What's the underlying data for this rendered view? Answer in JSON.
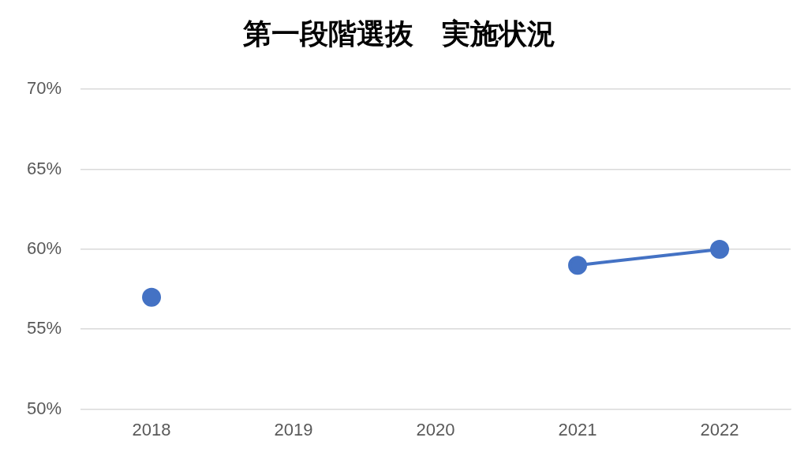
{
  "chart_data": {
    "type": "line",
    "title": "第一段階選抜　実施状況",
    "categories": [
      "2018",
      "2019",
      "2020",
      "2021",
      "2022"
    ],
    "series": [
      {
        "color": "#4472c4",
        "values": [
          57,
          null,
          null,
          59,
          60
        ]
      }
    ],
    "ylim": [
      50,
      70
    ],
    "yticks": [
      {
        "value": 50,
        "label": "50%"
      },
      {
        "value": 55,
        "label": "55%"
      },
      {
        "value": 60,
        "label": "60%"
      },
      {
        "value": 65,
        "label": "65%"
      },
      {
        "value": 70,
        "label": "70%"
      }
    ],
    "grid": "y",
    "legend": false,
    "marker": "circle",
    "line_style": "solid"
  }
}
